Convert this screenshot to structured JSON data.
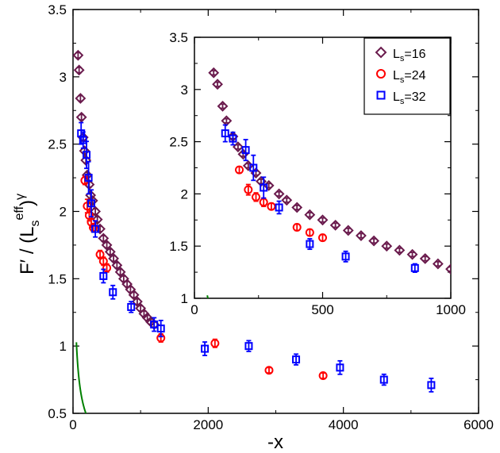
{
  "chart_data": [
    {
      "type": "scatter",
      "panel": "main",
      "xlabel": "-x",
      "ylabel_main": "F′ / (L",
      "ylabel_sub": "s",
      "ylabel_sup": "eff",
      "ylabel_close": ")",
      "ylabel_exp": "γ",
      "xlim": [
        0,
        6000
      ],
      "ylim": [
        0.5,
        3.5
      ],
      "xticks": [
        0,
        2000,
        4000,
        6000
      ],
      "yticks": [
        0.5,
        1,
        1.5,
        2,
        2.5,
        3,
        3.5
      ],
      "xtick_labels": [
        "0",
        "2000",
        "4000",
        "6000"
      ],
      "ytick_labels": [
        "0.5",
        "1",
        "1.5",
        "2",
        "2.5",
        "3",
        "3.5"
      ],
      "fit_curve": {
        "color": "#008000",
        "a": 8.5,
        "p": 0.54,
        "from": 50,
        "to": 6000
      },
      "series": [
        {
          "marker": "diamond",
          "color": "#6a1b4d",
          "points": [
            {
              "x": 75,
              "y": 3.16,
              "err": 0.02
            },
            {
              "x": 90,
              "y": 3.05,
              "err": 0.02
            },
            {
              "x": 110,
              "y": 2.84,
              "err": 0.02
            },
            {
              "x": 125,
              "y": 2.7,
              "err": 0.02
            },
            {
              "x": 150,
              "y": 2.55,
              "err": 0.02
            },
            {
              "x": 170,
              "y": 2.45,
              "err": 0.02
            },
            {
              "x": 190,
              "y": 2.38,
              "err": 0.02
            },
            {
              "x": 210,
              "y": 2.27,
              "err": 0.02
            },
            {
              "x": 240,
              "y": 2.2,
              "err": 0.02
            },
            {
              "x": 260,
              "y": 2.12,
              "err": 0.02
            },
            {
              "x": 290,
              "y": 2.08,
              "err": 0.02
            },
            {
              "x": 330,
              "y": 2.0,
              "err": 0.02
            },
            {
              "x": 360,
              "y": 1.94,
              "err": 0.02
            },
            {
              "x": 400,
              "y": 1.87,
              "err": 0.02
            },
            {
              "x": 450,
              "y": 1.8,
              "err": 0.02
            },
            {
              "x": 500,
              "y": 1.75,
              "err": 0.02
            },
            {
              "x": 550,
              "y": 1.7,
              "err": 0.02
            },
            {
              "x": 600,
              "y": 1.65,
              "err": 0.02
            },
            {
              "x": 650,
              "y": 1.6,
              "err": 0.02
            },
            {
              "x": 700,
              "y": 1.55,
              "err": 0.02
            },
            {
              "x": 750,
              "y": 1.5,
              "err": 0.02
            },
            {
              "x": 800,
              "y": 1.46,
              "err": 0.02
            },
            {
              "x": 850,
              "y": 1.42,
              "err": 0.02
            },
            {
              "x": 900,
              "y": 1.38,
              "err": 0.02
            },
            {
              "x": 950,
              "y": 1.33,
              "err": 0.02
            },
            {
              "x": 1000,
              "y": 1.28,
              "err": 0.02
            },
            {
              "x": 1050,
              "y": 1.24,
              "err": 0.02
            },
            {
              "x": 1100,
              "y": 1.21,
              "err": 0.02
            },
            {
              "x": 1150,
              "y": 1.18,
              "err": 0.02
            },
            {
              "x": 1200,
              "y": 1.16,
              "err": 0.02
            }
          ]
        },
        {
          "marker": "circle",
          "color": "#ff0000",
          "points": [
            {
              "x": 175,
              "y": 2.23,
              "err": 0.03
            },
            {
              "x": 210,
              "y": 2.04,
              "err": 0.05
            },
            {
              "x": 240,
              "y": 1.97,
              "err": 0.04
            },
            {
              "x": 270,
              "y": 1.92,
              "err": 0.04
            },
            {
              "x": 300,
              "y": 1.88,
              "err": 0.03
            },
            {
              "x": 400,
              "y": 1.68,
              "err": 0.03
            },
            {
              "x": 450,
              "y": 1.63,
              "err": 0.03
            },
            {
              "x": 500,
              "y": 1.58,
              "err": 0.03
            },
            {
              "x": 1300,
              "y": 1.06,
              "err": 0.03
            },
            {
              "x": 2100,
              "y": 1.02,
              "err": 0.03
            },
            {
              "x": 2900,
              "y": 0.82,
              "err": 0.02
            },
            {
              "x": 3700,
              "y": 0.78,
              "err": 0.02
            }
          ]
        },
        {
          "marker": "square",
          "color": "#0000ff",
          "points": [
            {
              "x": 120,
              "y": 2.58,
              "err": 0.08
            },
            {
              "x": 150,
              "y": 2.53,
              "err": 0.06
            },
            {
              "x": 200,
              "y": 2.42,
              "err": 0.1
            },
            {
              "x": 230,
              "y": 2.25,
              "err": 0.12
            },
            {
              "x": 270,
              "y": 2.06,
              "err": 0.1
            },
            {
              "x": 330,
              "y": 1.87,
              "err": 0.06
            },
            {
              "x": 450,
              "y": 1.52,
              "err": 0.05
            },
            {
              "x": 590,
              "y": 1.4,
              "err": 0.05
            },
            {
              "x": 860,
              "y": 1.29,
              "err": 0.04
            },
            {
              "x": 1200,
              "y": 1.16,
              "err": 0.05
            },
            {
              "x": 1300,
              "y": 1.13,
              "err": 0.06
            },
            {
              "x": 1950,
              "y": 0.98,
              "err": 0.05
            },
            {
              "x": 2600,
              "y": 1.0,
              "err": 0.04
            },
            {
              "x": 3300,
              "y": 0.9,
              "err": 0.04
            },
            {
              "x": 3950,
              "y": 0.84,
              "err": 0.05
            },
            {
              "x": 4600,
              "y": 0.75,
              "err": 0.04
            },
            {
              "x": 5300,
              "y": 0.71,
              "err": 0.05
            }
          ]
        }
      ]
    },
    {
      "type": "scatter",
      "panel": "inset",
      "xlim": [
        0,
        1000
      ],
      "ylim": [
        1,
        3.5
      ],
      "xticks": [
        0,
        500,
        1000
      ],
      "yticks": [
        1,
        1.5,
        2,
        2.5,
        3,
        3.5
      ],
      "xtick_labels": [
        "0",
        "500",
        "1000"
      ],
      "ytick_labels": [
        "1",
        "1.5",
        "2",
        "2.5",
        "3",
        "3.5"
      ],
      "legend_position": "top-right",
      "legend": [
        {
          "main": "L",
          "sub": "s",
          "rest": "=16",
          "marker": "diamond",
          "color": "#6a1b4d"
        },
        {
          "main": "L",
          "sub": "s",
          "rest": "=24",
          "marker": "circle",
          "color": "#ff0000"
        },
        {
          "main": "L",
          "sub": "s",
          "rest": "=32",
          "marker": "square",
          "color": "#0000ff"
        }
      ]
    }
  ]
}
